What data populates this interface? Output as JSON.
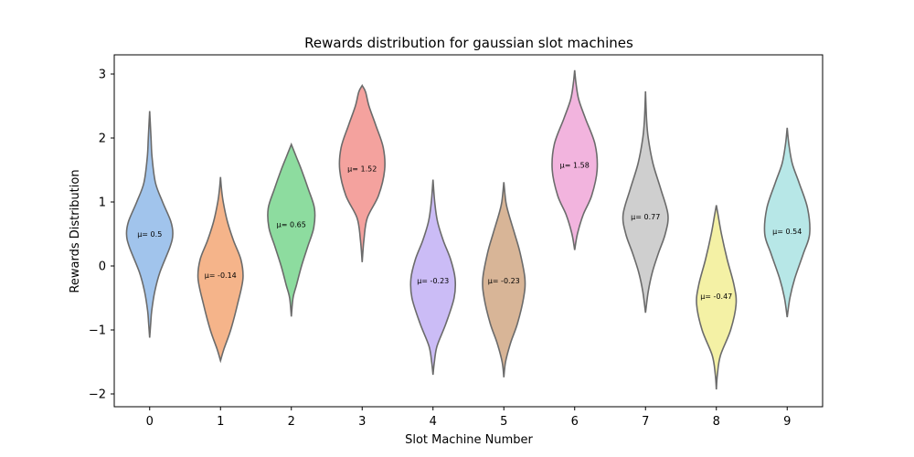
{
  "chart_data": {
    "type": "violin",
    "title": "Rewards distribution for gaussian slot machines",
    "xlabel": "Slot Machine Number",
    "ylabel": "Rewards Distribution",
    "categories": [
      "0",
      "1",
      "2",
      "3",
      "4",
      "5",
      "6",
      "7",
      "8",
      "9"
    ],
    "ylim": [
      -2.2,
      3.3
    ],
    "yticks": [
      -2,
      -1,
      0,
      1,
      2,
      3
    ],
    "ytick_labels": [
      "−2",
      "−1",
      "0",
      "1",
      "2",
      "3"
    ],
    "grid": false,
    "legend": "none",
    "colors": [
      "#a1c4ec",
      "#f5b48a",
      "#8ddc9f",
      "#f4a29e",
      "#cbbcf6",
      "#d8b597",
      "#f2b4de",
      "#cfcfcf",
      "#f4f1a5",
      "#b7e7e7"
    ],
    "edge_color": "#6b6b6b",
    "violins": [
      {
        "mean": 0.5,
        "mean_label": "μ= 0.5",
        "min": -1.12,
        "max": 2.42,
        "profile": [
          [
            -1.12,
            0.0
          ],
          [
            -0.9,
            0.03
          ],
          [
            -0.7,
            0.06
          ],
          [
            -0.4,
            0.15
          ],
          [
            -0.1,
            0.3
          ],
          [
            0.3,
            0.6
          ],
          [
            0.5,
            0.68
          ],
          [
            0.7,
            0.62
          ],
          [
            1.0,
            0.38
          ],
          [
            1.3,
            0.17
          ],
          [
            1.7,
            0.07
          ],
          [
            2.0,
            0.04
          ],
          [
            2.42,
            0.0
          ]
        ]
      },
      {
        "mean": -0.14,
        "mean_label": "μ= -0.14",
        "min": -1.48,
        "max": 1.39,
        "profile": [
          [
            -1.48,
            0.0
          ],
          [
            -1.3,
            0.1
          ],
          [
            -1.0,
            0.3
          ],
          [
            -0.6,
            0.5
          ],
          [
            -0.2,
            0.66
          ],
          [
            0.1,
            0.6
          ],
          [
            0.4,
            0.38
          ],
          [
            0.7,
            0.2
          ],
          [
            1.0,
            0.08
          ],
          [
            1.2,
            0.03
          ],
          [
            1.39,
            0.0
          ]
        ]
      },
      {
        "mean": 0.65,
        "mean_label": "μ= 0.65",
        "min": -0.79,
        "max": 1.9,
        "profile": [
          [
            -0.79,
            0.0
          ],
          [
            -0.5,
            0.05
          ],
          [
            -0.3,
            0.15
          ],
          [
            0.0,
            0.3
          ],
          [
            0.3,
            0.48
          ],
          [
            0.6,
            0.66
          ],
          [
            0.9,
            0.68
          ],
          [
            1.2,
            0.5
          ],
          [
            1.5,
            0.3
          ],
          [
            1.7,
            0.15
          ],
          [
            1.9,
            0.0
          ]
        ]
      },
      {
        "mean": 1.52,
        "mean_label": "μ= 1.52",
        "min": 0.06,
        "max": 2.82,
        "profile": [
          [
            0.06,
            0.0
          ],
          [
            0.4,
            0.05
          ],
          [
            0.75,
            0.15
          ],
          [
            1.1,
            0.48
          ],
          [
            1.5,
            0.66
          ],
          [
            1.85,
            0.62
          ],
          [
            2.2,
            0.4
          ],
          [
            2.5,
            0.2
          ],
          [
            2.72,
            0.1
          ],
          [
            2.82,
            0.0
          ]
        ]
      },
      {
        "mean": -0.23,
        "mean_label": "μ= -0.23",
        "min": -1.7,
        "max": 1.35,
        "profile": [
          [
            -1.7,
            0.0
          ],
          [
            -1.5,
            0.04
          ],
          [
            -1.25,
            0.12
          ],
          [
            -0.9,
            0.38
          ],
          [
            -0.5,
            0.62
          ],
          [
            -0.2,
            0.65
          ],
          [
            0.1,
            0.52
          ],
          [
            0.4,
            0.3
          ],
          [
            0.7,
            0.13
          ],
          [
            1.0,
            0.05
          ],
          [
            1.35,
            0.0
          ]
        ]
      },
      {
        "mean": -0.23,
        "mean_label": "μ= -0.23",
        "min": -1.74,
        "max": 1.31,
        "profile": [
          [
            -1.74,
            0.0
          ],
          [
            -1.5,
            0.05
          ],
          [
            -1.2,
            0.2
          ],
          [
            -0.9,
            0.4
          ],
          [
            -0.5,
            0.58
          ],
          [
            -0.2,
            0.62
          ],
          [
            0.2,
            0.48
          ],
          [
            0.5,
            0.32
          ],
          [
            0.8,
            0.15
          ],
          [
            1.0,
            0.06
          ],
          [
            1.31,
            0.0
          ]
        ]
      },
      {
        "mean": 1.58,
        "mean_label": "μ= 1.58",
        "min": 0.25,
        "max": 3.06,
        "profile": [
          [
            0.25,
            0.0
          ],
          [
            0.5,
            0.08
          ],
          [
            0.8,
            0.25
          ],
          [
            1.1,
            0.5
          ],
          [
            1.5,
            0.66
          ],
          [
            1.9,
            0.6
          ],
          [
            2.3,
            0.32
          ],
          [
            2.6,
            0.12
          ],
          [
            2.85,
            0.04
          ],
          [
            3.06,
            0.0
          ]
        ]
      },
      {
        "mean": 0.77,
        "mean_label": "μ= 0.77",
        "min": -0.73,
        "max": 2.73,
        "profile": [
          [
            -0.73,
            0.0
          ],
          [
            -0.4,
            0.08
          ],
          [
            -0.1,
            0.2
          ],
          [
            0.2,
            0.38
          ],
          [
            0.5,
            0.58
          ],
          [
            0.8,
            0.66
          ],
          [
            1.2,
            0.45
          ],
          [
            1.6,
            0.22
          ],
          [
            2.0,
            0.08
          ],
          [
            2.3,
            0.03
          ],
          [
            2.73,
            0.0
          ]
        ]
      },
      {
        "mean": -0.47,
        "mean_label": "μ= -0.47",
        "min": -1.93,
        "max": 0.95,
        "profile": [
          [
            -1.93,
            0.0
          ],
          [
            -1.7,
            0.03
          ],
          [
            -1.4,
            0.12
          ],
          [
            -1.0,
            0.42
          ],
          [
            -0.6,
            0.58
          ],
          [
            -0.3,
            0.52
          ],
          [
            0.1,
            0.32
          ],
          [
            0.5,
            0.15
          ],
          [
            0.8,
            0.05
          ],
          [
            0.95,
            0.0
          ]
        ]
      },
      {
        "mean": 0.54,
        "mean_label": "μ= 0.54",
        "min": -0.8,
        "max": 2.16,
        "profile": [
          [
            -0.8,
            0.0
          ],
          [
            -0.5,
            0.08
          ],
          [
            -0.2,
            0.22
          ],
          [
            0.2,
            0.48
          ],
          [
            0.5,
            0.66
          ],
          [
            0.9,
            0.6
          ],
          [
            1.3,
            0.35
          ],
          [
            1.6,
            0.15
          ],
          [
            1.9,
            0.05
          ],
          [
            2.16,
            0.0
          ]
        ]
      }
    ]
  }
}
